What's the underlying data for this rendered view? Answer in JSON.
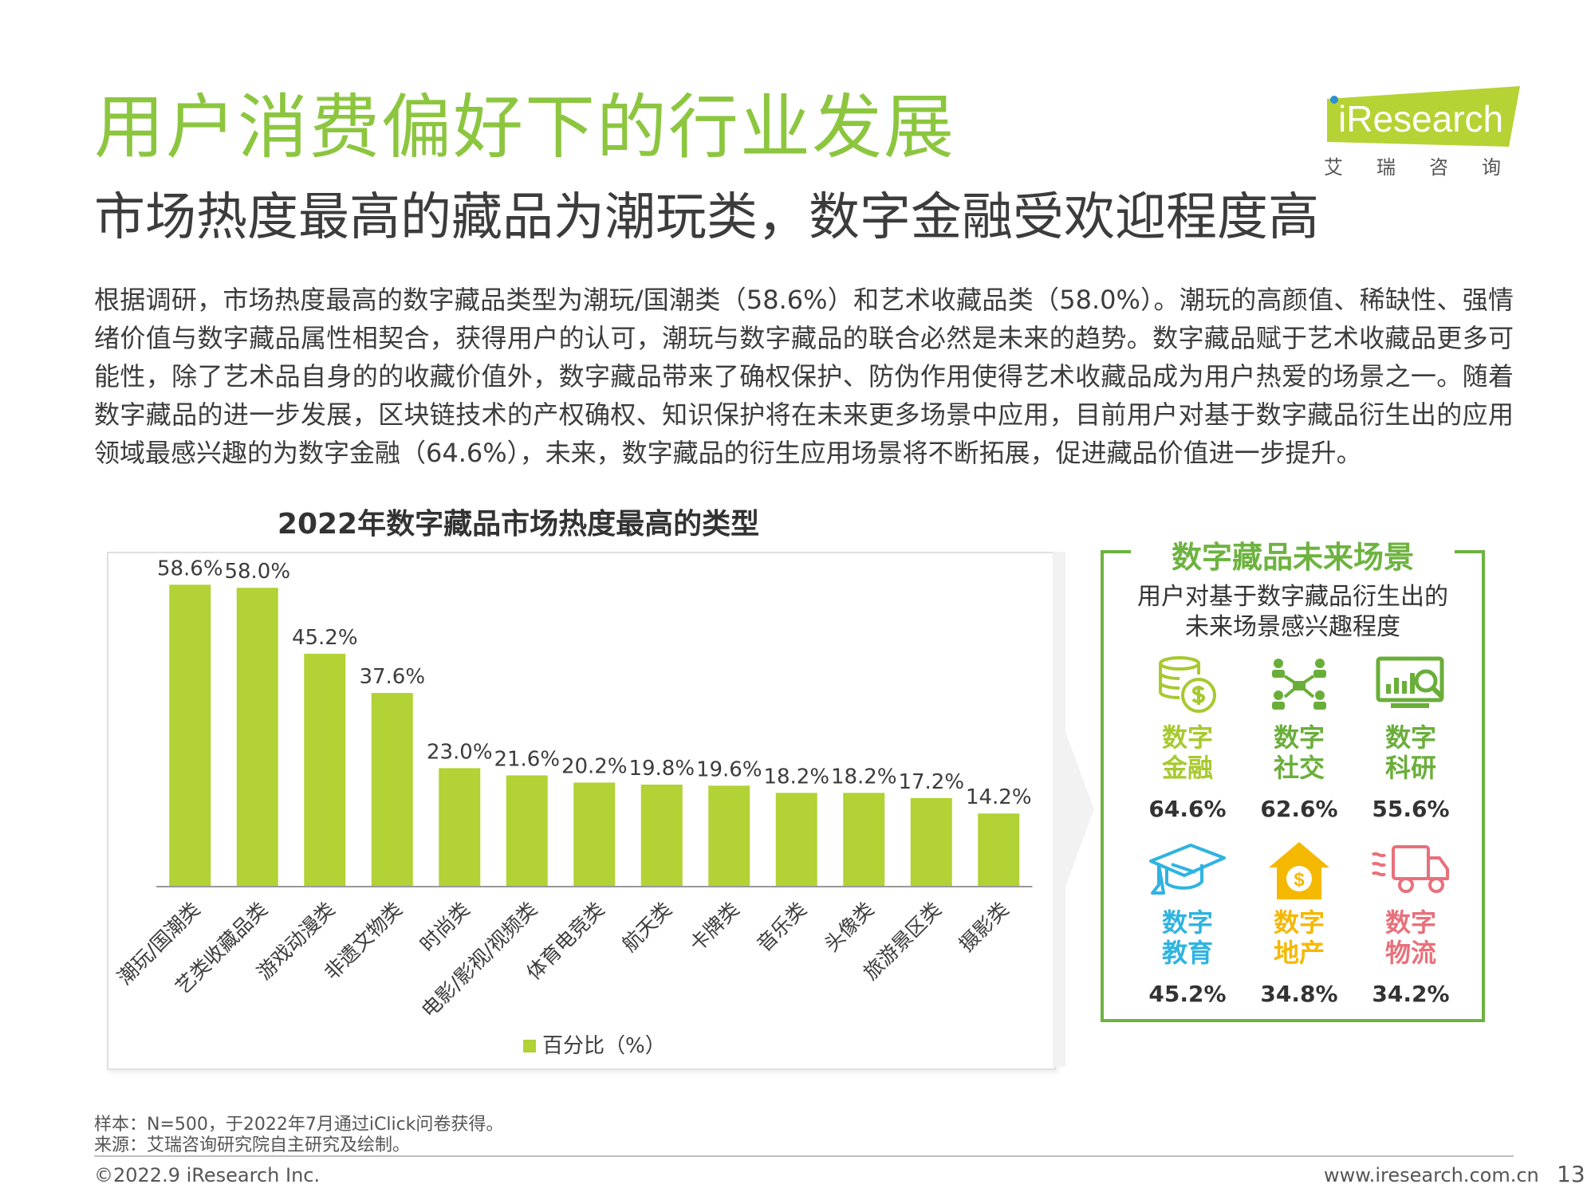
{
  "header": {
    "title": "用户消费偏好下的行业发展",
    "subtitle": "市场热度最高的藏品为潮玩类，数字金融受欢迎程度高"
  },
  "logo": {
    "text": "Research",
    "cn": "艾瑞咨询",
    "colors": {
      "brand": "#b5d334",
      "dot": "#2f8fd0"
    }
  },
  "body_text": "根据调研，市场热度最高的数字藏品类型为潮玩/国潮类（58.6%）和艺术收藏品类（58.0%）。潮玩的高颜值、稀缺性、强情绪价值与数字藏品属性相契合，获得用户的认可，潮玩与数字藏品的联合必然是未来的趋势。数字藏品赋于艺术收藏品更多可能性，除了艺术品自身的的收藏价值外，数字藏品带来了确权保护、防伪作用使得艺术收藏品成为用户热爱的场景之一。随着数字藏品的进一步发展，区块链技术的产权确权、知识保护将在未来更多场景中应用，目前用户对基于数字藏品衍生出的应用领域最感兴趣的为数字金融（64.6%），未来，数字藏品的衍生应用场景将不断拓展，促进藏品价值进一步提升。",
  "chart_data": {
    "type": "bar",
    "title": "2022年数字藏品市场热度最高的类型",
    "categories": [
      "潮玩/国潮类",
      "艺类收藏品类",
      "游戏动漫类",
      "非遗文物类",
      "时尚类",
      "电影/影视/视频类",
      "体育电竞类",
      "航天类",
      "卡牌类",
      "音乐类",
      "头像类",
      "旅游景区类",
      "摄影类"
    ],
    "series": [
      {
        "name": "百分比（%）",
        "values": [
          58.6,
          58.0,
          45.2,
          37.6,
          23.0,
          21.6,
          20.2,
          19.8,
          19.6,
          18.2,
          18.2,
          17.2,
          14.2
        ]
      }
    ],
    "data_labels": [
      "58.6%",
      "58.0%",
      "45.2%",
      "37.6%",
      "23.0%",
      "21.6%",
      "20.2%",
      "19.8%",
      "19.6%",
      "18.2%",
      "18.2%",
      "17.2%",
      "14.2%"
    ],
    "ylim": [
      0,
      65
    ],
    "legend": "bottom",
    "grid": false,
    "bar_color": "#b2d235"
  },
  "panel": {
    "title": "数字藏品未来场景",
    "subtitle_line1": "用户对基于数字藏品衍生出的",
    "subtitle_line2": "未来场景感兴趣程度",
    "scenes": [
      {
        "line1": "数字",
        "line2": "金融",
        "value": "64.6%",
        "color": "#a7c92f",
        "icon": "coins-icon"
      },
      {
        "line1": "数字",
        "line2": "社交",
        "value": "62.6%",
        "color": "#6aae3a",
        "icon": "network-icon"
      },
      {
        "line1": "数字",
        "line2": "科研",
        "value": "55.6%",
        "color": "#6aae3a",
        "icon": "monitor-chart-icon"
      },
      {
        "line1": "数字",
        "line2": "教育",
        "value": "45.2%",
        "color": "#2fb3e0",
        "icon": "graduation-cap-icon"
      },
      {
        "line1": "数字",
        "line2": "地产",
        "value": "34.8%",
        "color": "#f5b800",
        "icon": "house-dollar-icon"
      },
      {
        "line1": "数字",
        "line2": "物流",
        "value": "34.2%",
        "color": "#e8707a",
        "icon": "delivery-truck-icon"
      }
    ]
  },
  "footnote": {
    "sample": "样本：N=500，于2022年7月通过iClick问卷获得。",
    "source": "来源：艾瑞咨询研究院自主研究及绘制。"
  },
  "footer": {
    "copyright": "©2022.9 iResearch Inc.",
    "website": "www.iresearch.com.cn",
    "page": "13"
  }
}
